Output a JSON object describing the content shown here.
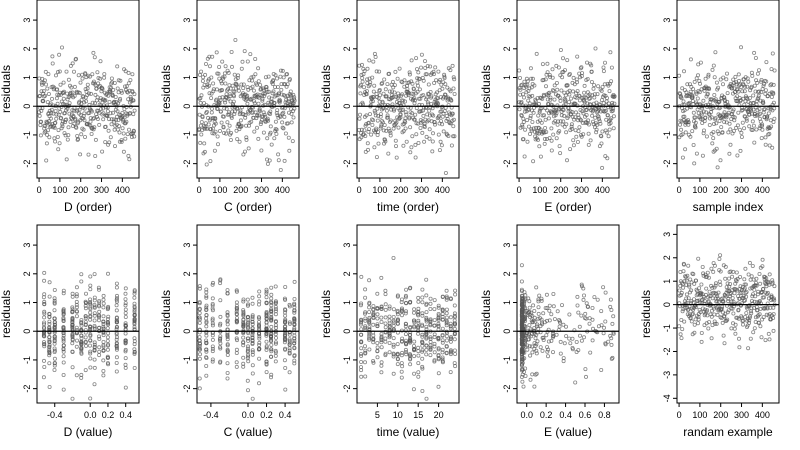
{
  "figure": {
    "ylabel": "residuals",
    "colors": {
      "points": "#555555",
      "axes": "#000000",
      "background": "#ffffff"
    }
  },
  "chart_data": [
    {
      "type": "scatter",
      "xlabel": "D (order)",
      "ylabel": "residuals",
      "xlim": [
        -10,
        480
      ],
      "ylim": [
        -2.5,
        3.7
      ],
      "xticks": [
        0,
        100,
        200,
        300,
        400
      ],
      "xtick_labels": [
        "0",
        "100",
        "200",
        "300",
        "400"
      ],
      "yticks": [
        -2,
        -1,
        0,
        1,
        2,
        3
      ],
      "ytick_labels": [
        "-2",
        "-1",
        "0",
        "1",
        "2",
        "3"
      ],
      "hline": 0,
      "x_mode": "order",
      "n": 430,
      "seed": 11
    },
    {
      "type": "scatter",
      "xlabel": "C (order)",
      "ylabel": "residuals",
      "xlim": [
        -10,
        480
      ],
      "ylim": [
        -2.5,
        3.7
      ],
      "xticks": [
        0,
        100,
        200,
        300,
        400
      ],
      "xtick_labels": [
        "0",
        "100",
        "200",
        "300",
        "400"
      ],
      "yticks": [
        -2,
        -1,
        0,
        1,
        2,
        3
      ],
      "ytick_labels": [
        "-2",
        "-1",
        "0",
        "1",
        "2",
        "3"
      ],
      "hline": 0,
      "x_mode": "order",
      "n": 430,
      "seed": 23
    },
    {
      "type": "scatter",
      "xlabel": "time (order)",
      "ylabel": "residuals",
      "xlim": [
        -10,
        480
      ],
      "ylim": [
        -2.5,
        3.7
      ],
      "xticks": [
        0,
        100,
        200,
        300,
        400
      ],
      "xtick_labels": [
        "0",
        "100",
        "200",
        "300",
        "400"
      ],
      "yticks": [
        -2,
        -1,
        0,
        1,
        2,
        3
      ],
      "ytick_labels": [
        "-2",
        "-1",
        "0",
        "1",
        "2",
        "3"
      ],
      "hline": 0,
      "x_mode": "order",
      "n": 430,
      "seed": 37
    },
    {
      "type": "scatter",
      "xlabel": "E (order)",
      "ylabel": "residuals",
      "xlim": [
        -10,
        480
      ],
      "ylim": [
        -2.5,
        3.7
      ],
      "xticks": [
        0,
        100,
        200,
        300,
        400
      ],
      "xtick_labels": [
        "0",
        "100",
        "200",
        "300",
        "400"
      ],
      "yticks": [
        -2,
        -1,
        0,
        1,
        2,
        3
      ],
      "ytick_labels": [
        "-2",
        "-1",
        "0",
        "1",
        "2",
        "3"
      ],
      "hline": 0,
      "x_mode": "order",
      "n": 430,
      "seed": 41
    },
    {
      "type": "scatter",
      "xlabel": "sample index",
      "ylabel": "residuals",
      "xlim": [
        -10,
        480
      ],
      "ylim": [
        -2.5,
        3.7
      ],
      "xticks": [
        0,
        100,
        200,
        300,
        400
      ],
      "xtick_labels": [
        "0",
        "100",
        "200",
        "300",
        "400"
      ],
      "yticks": [
        -2,
        -1,
        0,
        1,
        2,
        3
      ],
      "ytick_labels": [
        "-2",
        "-1",
        "0",
        "1",
        "2",
        "3"
      ],
      "hline": 0,
      "x_mode": "order",
      "n": 430,
      "seed": 53
    },
    {
      "type": "scatter",
      "xlabel": "D (value)",
      "ylabel": "residuals",
      "xlim": [
        -0.6,
        0.55
      ],
      "ylim": [
        -2.5,
        3.7
      ],
      "xticks": [
        -0.4,
        0,
        0.2,
        0.4
      ],
      "xtick_labels": [
        "-0.4",
        "0.0",
        "0.2",
        "0.4"
      ],
      "yticks": [
        -2,
        -1,
        0,
        1,
        2,
        3
      ],
      "ytick_labels": [
        "-2",
        "-1",
        "0",
        "1",
        "2",
        "3"
      ],
      "hline": 0,
      "x_mode": "discrete",
      "x_values": [
        -0.52,
        -0.46,
        -0.4,
        -0.3,
        -0.2,
        -0.15,
        -0.1,
        -0.05,
        0,
        0.05,
        0.1,
        0.15,
        0.2,
        0.3,
        0.4,
        0.5
      ],
      "n": 430,
      "seed": 67
    },
    {
      "type": "scatter",
      "xlabel": "C (value)",
      "ylabel": "residuals",
      "xlim": [
        -0.55,
        0.55
      ],
      "ylim": [
        -2.5,
        3.7
      ],
      "xticks": [
        -0.4,
        0,
        0.2,
        0.4
      ],
      "xtick_labels": [
        "-0.4",
        "0.0",
        "0.2",
        "0.4"
      ],
      "yticks": [
        -2,
        -1,
        0,
        1,
        2,
        3
      ],
      "ytick_labels": [
        "-2",
        "-1",
        "0",
        "1",
        "2",
        "3"
      ],
      "hline": 0,
      "x_mode": "discrete",
      "x_values": [
        -0.52,
        -0.45,
        -0.38,
        -0.3,
        -0.22,
        -0.12,
        -0.05,
        0,
        0.05,
        0.12,
        0.2,
        0.25,
        0.3,
        0.4,
        0.45,
        0.5
      ],
      "n": 430,
      "seed": 71
    },
    {
      "type": "scatter",
      "xlabel": "time (value)",
      "ylabel": "residuals",
      "xlim": [
        0,
        25
      ],
      "ylim": [
        -2.5,
        3.7
      ],
      "xticks": [
        5,
        10,
        15,
        20
      ],
      "xtick_labels": [
        "5",
        "10",
        "15",
        "20"
      ],
      "yticks": [
        -2,
        -1,
        0,
        1,
        2,
        3
      ],
      "ytick_labels": [
        "-2",
        "-1",
        "0",
        "1",
        "2",
        "3"
      ],
      "hline": 0,
      "x_mode": "discrete",
      "x_values": [
        1,
        2,
        3,
        4,
        5,
        6,
        7,
        8,
        9,
        10,
        11,
        12,
        13,
        14,
        15,
        16,
        17,
        18,
        19,
        20,
        21,
        22,
        23,
        24
      ],
      "n": 430,
      "seed": 83
    },
    {
      "type": "scatter",
      "xlabel": "E (value)",
      "ylabel": "residuals",
      "xlim": [
        -0.1,
        0.95
      ],
      "ylim": [
        -2.5,
        3.7
      ],
      "xticks": [
        0,
        0.2,
        0.4,
        0.6,
        0.8
      ],
      "xtick_labels": [
        "0.0",
        "0.2",
        "0.4",
        "0.6",
        "0.8"
      ],
      "yticks": [
        -2,
        -1,
        0,
        1,
        2,
        3
      ],
      "ytick_labels": [
        "-2",
        "-1",
        "0",
        "1",
        "2",
        "3"
      ],
      "hline": 0,
      "x_mode": "skewed",
      "x_min": -0.05,
      "x_max": 0.9,
      "n": 430,
      "seed": 97
    },
    {
      "type": "scatter",
      "xlabel": "randam example",
      "ylabel": "residuals",
      "xlim": [
        -10,
        480
      ],
      "ylim": [
        -4.2,
        3.4
      ],
      "xticks": [
        0,
        100,
        200,
        300,
        400
      ],
      "xtick_labels": [
        "0",
        "100",
        "200",
        "300",
        "400"
      ],
      "yticks": [
        -4,
        -3,
        -2,
        -1,
        0,
        1,
        2,
        3
      ],
      "ytick_labels": [
        "-4",
        "-3",
        "-2",
        "-1",
        "0",
        "1",
        "2",
        "3"
      ],
      "hline": 0,
      "x_mode": "order",
      "n": 430,
      "seed": 101,
      "y_scale": 1.0,
      "y_shift": 0.2
    }
  ]
}
